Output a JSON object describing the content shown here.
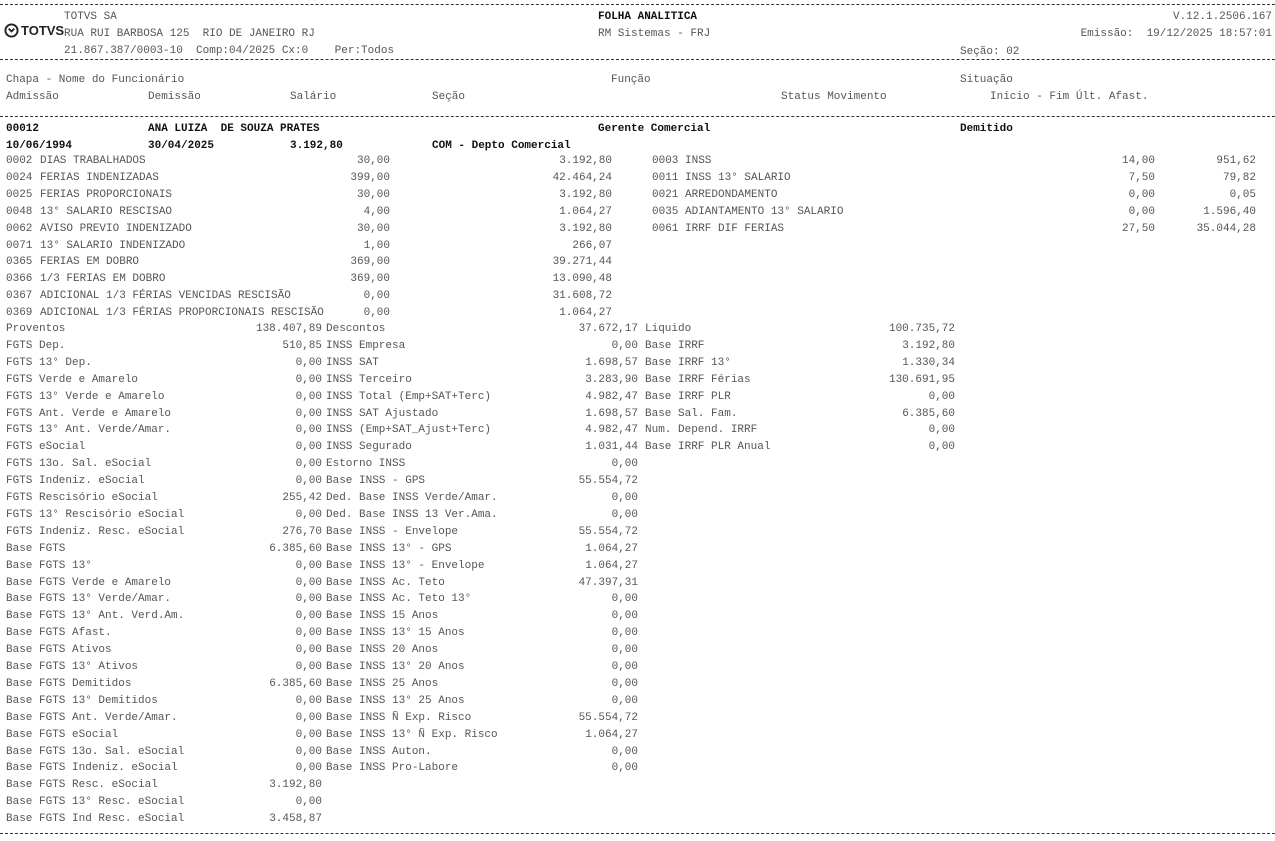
{
  "header": {
    "company": "TOTVS SA",
    "logo_text": "TOTVS",
    "address": "RUA RUI BARBOSA 125  RIO DE JANEIRO RJ",
    "cnpj_line": "21.867.387/0003-10  Comp:04/2025 Cx:0    Per:Todos",
    "report_title": "FOLHA ANALITICA",
    "system": "RM Sistemas - FRJ",
    "version": "V.12.1.2506.167",
    "emission": "Emissão:  19/12/2025 18:57:01",
    "section": "Seção: 02"
  },
  "columns": {
    "chapa_nome": "Chapa - Nome do Funcionário",
    "funcao": "Função",
    "situacao": "Situação",
    "admissao": "Admissão",
    "demissao": "Demissão",
    "salario": "Salário",
    "secao": "Seção",
    "status": "Status Movimento",
    "afast": "Inicio - Fim Últ. Afast."
  },
  "employee": {
    "chapa": "00012",
    "nome": "ANA LUIZA  DE SOUZA PRATES",
    "funcao": "Gerente Comercial",
    "situacao": "Demitido",
    "admissao": "10/06/1994",
    "demissao": "30/04/2025",
    "salario": "3.192,80",
    "secao": "COM - Depto Comercial"
  },
  "proventos": [
    {
      "code": "0002",
      "desc": "DIAS TRABALHADOS",
      "ref": "30,00",
      "value": "3.192,80"
    },
    {
      "code": "0024",
      "desc": "FERIAS INDENIZADAS",
      "ref": "399,00",
      "value": "42.464,24"
    },
    {
      "code": "0025",
      "desc": "FERIAS PROPORCIONAIS",
      "ref": "30,00",
      "value": "3.192,80"
    },
    {
      "code": "0048",
      "desc": "13° SALARIO RESCISAO",
      "ref": "4,00",
      "value": "1.064,27"
    },
    {
      "code": "0062",
      "desc": "AVISO PREVIO INDENIZADO",
      "ref": "30,00",
      "value": "3.192,80"
    },
    {
      "code": "0071",
      "desc": "13° SALARIO INDENIZADO",
      "ref": "1,00",
      "value": "266,07"
    },
    {
      "code": "0365",
      "desc": "FERIAS EM DOBRO",
      "ref": "369,00",
      "value": "39.271,44"
    },
    {
      "code": "0366",
      "desc": "1/3 FERIAS EM DOBRO",
      "ref": "369,00",
      "value": "13.090,48"
    },
    {
      "code": "0367",
      "desc": "ADICIONAL 1/3 FÉRIAS VENCIDAS RESCISÃO",
      "ref": "0,00",
      "value": "31.608,72"
    },
    {
      "code": "0369",
      "desc": "ADICIONAL 1/3 FÉRIAS PROPORCIONAIS RESCISÃO",
      "ref": "0,00",
      "value": "1.064,27"
    }
  ],
  "descontos": [
    {
      "code": "0003",
      "desc": "INSS",
      "ref": "14,00",
      "value": "951,62"
    },
    {
      "code": "0011",
      "desc": "INSS 13° SALARIO",
      "ref": "7,50",
      "value": "79,82"
    },
    {
      "code": "0021",
      "desc": "ARREDONDAMENTO",
      "ref": "0,00",
      "value": "0,05"
    },
    {
      "code": "0035",
      "desc": "ADIANTAMENTO 13° SALARIO",
      "ref": "0,00",
      "value": "1.596,40"
    },
    {
      "code": "0061",
      "desc": "IRRF DIF FERIAS",
      "ref": "27,50",
      "value": "35.044,28"
    }
  ],
  "totals_col1": [
    {
      "label": "Proventos",
      "value": "138.407,89"
    },
    {
      "label": "FGTS Dep.",
      "value": "510,85"
    },
    {
      "label": "FGTS 13° Dep.",
      "value": "0,00"
    },
    {
      "label": "FGTS Verde e Amarelo",
      "value": "0,00"
    },
    {
      "label": "FGTS 13° Verde e Amarelo",
      "value": "0,00"
    },
    {
      "label": "FGTS Ant. Verde e Amarelo",
      "value": "0,00"
    },
    {
      "label": "FGTS 13° Ant. Verde/Amar.",
      "value": "0,00"
    },
    {
      "label": "FGTS eSocial",
      "value": "0,00"
    },
    {
      "label": "FGTS 13o. Sal. eSocial",
      "value": "0,00"
    },
    {
      "label": "FGTS Indeniz. eSocial",
      "value": "0,00"
    },
    {
      "label": "FGTS Rescisório eSocial",
      "value": "255,42"
    },
    {
      "label": "FGTS 13° Rescisório eSocial",
      "value": "0,00"
    },
    {
      "label": "FGTS Indeniz. Resc. eSocial",
      "value": "276,70"
    },
    {
      "label": "Base FGTS",
      "value": "6.385,60"
    },
    {
      "label": "Base FGTS 13°",
      "value": "0,00"
    },
    {
      "label": "Base FGTS Verde e Amarelo",
      "value": "0,00"
    },
    {
      "label": "Base FGTS 13° Verde/Amar.",
      "value": "0,00"
    },
    {
      "label": "Base FGTS 13° Ant. Verd.Am.",
      "value": "0,00"
    },
    {
      "label": "Base FGTS Afast.",
      "value": "0,00"
    },
    {
      "label": "Base FGTS Ativos",
      "value": "0,00"
    },
    {
      "label": "Base FGTS 13° Ativos",
      "value": "0,00"
    },
    {
      "label": "Base FGTS Demitidos",
      "value": "6.385,60"
    },
    {
      "label": "Base FGTS 13° Demitidos",
      "value": "0,00"
    },
    {
      "label": "Base FGTS Ant. Verde/Amar.",
      "value": "0,00"
    },
    {
      "label": "Base FGTS eSocial",
      "value": "0,00"
    },
    {
      "label": "Base FGTS 13o. Sal. eSocial",
      "value": "0,00"
    },
    {
      "label": "Base FGTS Indeniz. eSocial",
      "value": "0,00"
    },
    {
      "label": "Base FGTS Resc. eSocial",
      "value": "3.192,80"
    },
    {
      "label": "Base FGTS 13° Resc. eSocial",
      "value": "0,00"
    },
    {
      "label": "Base FGTS Ind Resc. eSocial",
      "value": "3.458,87"
    }
  ],
  "totals_col2": [
    {
      "label": "Descontos",
      "value": "37.672,17"
    },
    {
      "label": "INSS Empresa",
      "value": "0,00"
    },
    {
      "label": "INSS SAT",
      "value": "1.698,57"
    },
    {
      "label": "INSS Terceiro",
      "value": "3.283,90"
    },
    {
      "label": "INSS Total (Emp+SAT+Terc)",
      "value": "4.982,47"
    },
    {
      "label": "INSS SAT Ajustado",
      "value": "1.698,57"
    },
    {
      "label": "INSS (Emp+SAT_Ajust+Terc)",
      "value": "4.982,47"
    },
    {
      "label": "INSS Segurado",
      "value": "1.031,44"
    },
    {
      "label": "Estorno INSS",
      "value": "0,00"
    },
    {
      "label": "Base INSS - GPS",
      "value": "55.554,72"
    },
    {
      "label": "Ded. Base INSS Verde/Amar.",
      "value": "0,00"
    },
    {
      "label": "Ded. Base INSS 13 Ver.Ama.",
      "value": "0,00"
    },
    {
      "label": "Base INSS - Envelope",
      "value": "55.554,72"
    },
    {
      "label": "Base INSS 13° - GPS",
      "value": "1.064,27"
    },
    {
      "label": "Base INSS 13° - Envelope",
      "value": "1.064,27"
    },
    {
      "label": "Base INSS Ac. Teto",
      "value": "47.397,31"
    },
    {
      "label": "Base INSS Ac. Teto 13°",
      "value": "0,00"
    },
    {
      "label": "Base INSS 15 Anos",
      "value": "0,00"
    },
    {
      "label": "Base INSS 13° 15 Anos",
      "value": "0,00"
    },
    {
      "label": "Base INSS 20 Anos",
      "value": "0,00"
    },
    {
      "label": "Base INSS 13° 20 Anos",
      "value": "0,00"
    },
    {
      "label": "Base INSS 25 Anos",
      "value": "0,00"
    },
    {
      "label": "Base INSS 13° 25 Anos",
      "value": "0,00"
    },
    {
      "label": "Base INSS Ñ Exp. Risco",
      "value": "55.554,72"
    },
    {
      "label": "Base INSS 13° Ñ Exp. Risco",
      "value": "1.064,27"
    },
    {
      "label": "Base INSS Auton.",
      "value": "0,00"
    },
    {
      "label": "Base INSS Pro-Labore",
      "value": "0,00"
    }
  ],
  "totals_col3": [
    {
      "label": "Liquido",
      "value": "100.735,72"
    },
    {
      "label": "Base IRRF",
      "value": "3.192,80"
    },
    {
      "label": "Base IRRF 13°",
      "value": "1.330,34"
    },
    {
      "label": "Base IRRF Férias",
      "value": "130.691,95"
    },
    {
      "label": "Base IRRF PLR",
      "value": "0,00"
    },
    {
      "label": "Base Sal. Fam.",
      "value": "6.385,60"
    },
    {
      "label": "Num. Depend. IRRF",
      "value": "0,00"
    },
    {
      "label": "Base IRRF PLR Anual",
      "value": "0,00"
    }
  ]
}
